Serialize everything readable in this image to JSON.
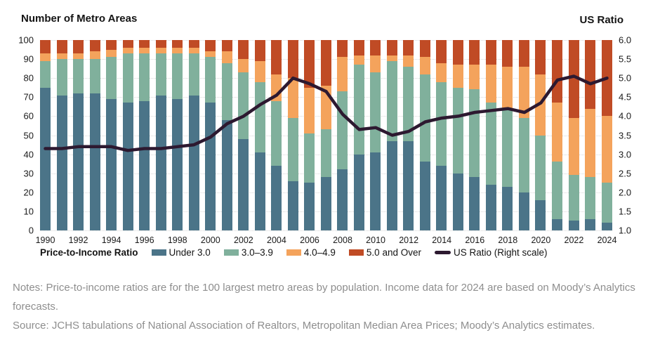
{
  "header": {
    "left_axis_title": "Number of Metro Areas",
    "right_axis_title": "US Ratio"
  },
  "chart_data": {
    "type": "bar",
    "subtype": "stacked-bars-with-line",
    "years": [
      1990,
      1991,
      1992,
      1993,
      1994,
      1995,
      1996,
      1997,
      1998,
      1999,
      2000,
      2001,
      2002,
      2003,
      2004,
      2005,
      2006,
      2007,
      2008,
      2009,
      2010,
      2011,
      2012,
      2013,
      2014,
      2015,
      2016,
      2017,
      2018,
      2019,
      2020,
      2021,
      2022,
      2023,
      2024
    ],
    "series": [
      {
        "name": "Under 3.0",
        "color": "#4b7488",
        "values": [
          75,
          71,
          72,
          72,
          69,
          67,
          68,
          71,
          69,
          71,
          67,
          58,
          48,
          41,
          34,
          26,
          25,
          28,
          32,
          40,
          41,
          47,
          47,
          36,
          34,
          30,
          28,
          24,
          23,
          20,
          16,
          6,
          5,
          6,
          4
        ]
      },
      {
        "name": "3.0–3.9",
        "color": "#80b09c",
        "values": [
          14,
          19,
          18,
          18,
          22,
          26,
          25,
          22,
          24,
          22,
          24,
          30,
          35,
          37,
          34,
          33,
          26,
          25,
          41,
          47,
          42,
          42,
          39,
          46,
          44,
          45,
          46,
          43,
          40,
          39,
          34,
          30,
          24,
          22,
          21
        ]
      },
      {
        "name": "4.0–4.9",
        "color": "#f4a35c",
        "values": [
          4,
          3,
          3,
          4,
          4,
          3,
          3,
          3,
          3,
          3,
          3,
          6,
          7,
          11,
          14,
          21,
          24,
          23,
          18,
          5,
          9,
          3,
          6,
          9,
          10,
          12,
          13,
          20,
          23,
          27,
          32,
          31,
          30,
          36,
          35
        ]
      },
      {
        "name": "5.0 and Over",
        "color": "#c04b25",
        "values": [
          7,
          7,
          7,
          6,
          5,
          4,
          4,
          4,
          4,
          4,
          6,
          6,
          10,
          11,
          18,
          20,
          25,
          24,
          9,
          8,
          8,
          8,
          8,
          9,
          12,
          13,
          13,
          13,
          14,
          14,
          18,
          33,
          41,
          36,
          40
        ]
      }
    ],
    "line_series": {
      "name": "US Ratio (Right scale)",
      "color": "#2d1930",
      "values": [
        3.15,
        3.15,
        3.2,
        3.2,
        3.2,
        3.1,
        3.15,
        3.15,
        3.2,
        3.25,
        3.45,
        3.8,
        4.0,
        4.3,
        4.55,
        5.0,
        4.85,
        4.65,
        4.05,
        3.65,
        3.7,
        3.5,
        3.6,
        3.85,
        3.95,
        4.0,
        4.1,
        4.15,
        4.2,
        4.1,
        4.35,
        4.95,
        5.05,
        4.85,
        5.0
      ]
    },
    "left_axis": {
      "label": "Number of Metro Areas",
      "min": 0,
      "max": 100,
      "ticks": [
        "100",
        "90",
        "80",
        "70",
        "60",
        "50",
        "40",
        "30",
        "20",
        "10",
        "0"
      ]
    },
    "right_axis": {
      "label": "US Ratio",
      "min": 1.0,
      "max": 6.0,
      "ticks": [
        "6.0",
        "5.5",
        "5.0",
        "4.5",
        "4.0",
        "3.5",
        "3.0",
        "2.5",
        "2.0",
        "1.5",
        "1.0"
      ]
    },
    "x_tick_years": [
      1990,
      1992,
      1994,
      1996,
      1998,
      2000,
      2002,
      2004,
      2006,
      2008,
      2010,
      2012,
      2014,
      2016,
      2018,
      2020,
      2022,
      2024
    ],
    "grid": true,
    "legend_position": "bottom"
  },
  "legend": {
    "title": "Price-to-Income Ratio",
    "items": [
      {
        "label": "Under 3.0",
        "color": "#4b7488",
        "mark": "swatch"
      },
      {
        "label": "3.0–3.9",
        "color": "#80b09c",
        "mark": "swatch"
      },
      {
        "label": "4.0–4.9",
        "color": "#f4a35c",
        "mark": "swatch"
      },
      {
        "label": "5.0 and Over",
        "color": "#c04b25",
        "mark": "swatch"
      },
      {
        "label": "US Ratio (Right scale)",
        "color": "#2d1930",
        "mark": "line"
      }
    ]
  },
  "notes": {
    "notes_text": "Notes: Price-to-income ratios are for the 100 largest metro areas by population. Income data for 2024 are based on Moody’s Analytics forecasts.",
    "source_text": "Source: JCHS tabulations of National Association of Realtors, Metropolitan Median Area Prices; Moody’s Analytics estimates."
  }
}
